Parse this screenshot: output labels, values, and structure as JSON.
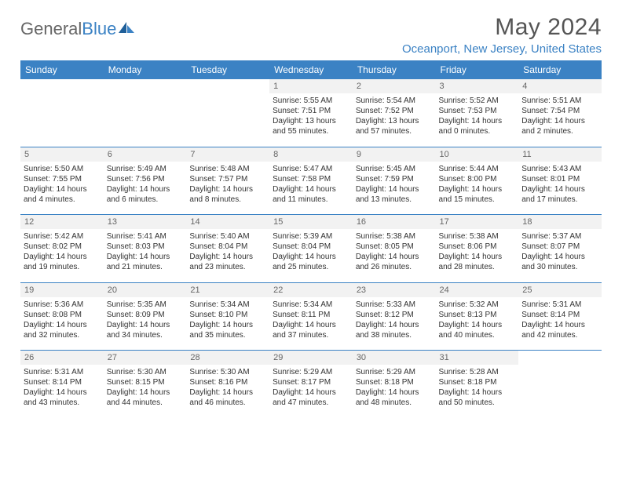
{
  "brand": {
    "part1": "General",
    "part2": "Blue"
  },
  "title": "May 2024",
  "location": "Oceanport, New Jersey, United States",
  "day_headers": [
    "Sunday",
    "Monday",
    "Tuesday",
    "Wednesday",
    "Thursday",
    "Friday",
    "Saturday"
  ],
  "colors": {
    "accent": "#3b82c4",
    "daynum_bg": "#f2f2f2",
    "text": "#333333",
    "header_text": "#555555"
  },
  "weeks": [
    [
      null,
      null,
      null,
      {
        "n": "1",
        "sr": "Sunrise: 5:55 AM",
        "ss": "Sunset: 7:51 PM",
        "d1": "Daylight: 13 hours",
        "d2": "and 55 minutes."
      },
      {
        "n": "2",
        "sr": "Sunrise: 5:54 AM",
        "ss": "Sunset: 7:52 PM",
        "d1": "Daylight: 13 hours",
        "d2": "and 57 minutes."
      },
      {
        "n": "3",
        "sr": "Sunrise: 5:52 AM",
        "ss": "Sunset: 7:53 PM",
        "d1": "Daylight: 14 hours",
        "d2": "and 0 minutes."
      },
      {
        "n": "4",
        "sr": "Sunrise: 5:51 AM",
        "ss": "Sunset: 7:54 PM",
        "d1": "Daylight: 14 hours",
        "d2": "and 2 minutes."
      }
    ],
    [
      {
        "n": "5",
        "sr": "Sunrise: 5:50 AM",
        "ss": "Sunset: 7:55 PM",
        "d1": "Daylight: 14 hours",
        "d2": "and 4 minutes."
      },
      {
        "n": "6",
        "sr": "Sunrise: 5:49 AM",
        "ss": "Sunset: 7:56 PM",
        "d1": "Daylight: 14 hours",
        "d2": "and 6 minutes."
      },
      {
        "n": "7",
        "sr": "Sunrise: 5:48 AM",
        "ss": "Sunset: 7:57 PM",
        "d1": "Daylight: 14 hours",
        "d2": "and 8 minutes."
      },
      {
        "n": "8",
        "sr": "Sunrise: 5:47 AM",
        "ss": "Sunset: 7:58 PM",
        "d1": "Daylight: 14 hours",
        "d2": "and 11 minutes."
      },
      {
        "n": "9",
        "sr": "Sunrise: 5:45 AM",
        "ss": "Sunset: 7:59 PM",
        "d1": "Daylight: 14 hours",
        "d2": "and 13 minutes."
      },
      {
        "n": "10",
        "sr": "Sunrise: 5:44 AM",
        "ss": "Sunset: 8:00 PM",
        "d1": "Daylight: 14 hours",
        "d2": "and 15 minutes."
      },
      {
        "n": "11",
        "sr": "Sunrise: 5:43 AM",
        "ss": "Sunset: 8:01 PM",
        "d1": "Daylight: 14 hours",
        "d2": "and 17 minutes."
      }
    ],
    [
      {
        "n": "12",
        "sr": "Sunrise: 5:42 AM",
        "ss": "Sunset: 8:02 PM",
        "d1": "Daylight: 14 hours",
        "d2": "and 19 minutes."
      },
      {
        "n": "13",
        "sr": "Sunrise: 5:41 AM",
        "ss": "Sunset: 8:03 PM",
        "d1": "Daylight: 14 hours",
        "d2": "and 21 minutes."
      },
      {
        "n": "14",
        "sr": "Sunrise: 5:40 AM",
        "ss": "Sunset: 8:04 PM",
        "d1": "Daylight: 14 hours",
        "d2": "and 23 minutes."
      },
      {
        "n": "15",
        "sr": "Sunrise: 5:39 AM",
        "ss": "Sunset: 8:04 PM",
        "d1": "Daylight: 14 hours",
        "d2": "and 25 minutes."
      },
      {
        "n": "16",
        "sr": "Sunrise: 5:38 AM",
        "ss": "Sunset: 8:05 PM",
        "d1": "Daylight: 14 hours",
        "d2": "and 26 minutes."
      },
      {
        "n": "17",
        "sr": "Sunrise: 5:38 AM",
        "ss": "Sunset: 8:06 PM",
        "d1": "Daylight: 14 hours",
        "d2": "and 28 minutes."
      },
      {
        "n": "18",
        "sr": "Sunrise: 5:37 AM",
        "ss": "Sunset: 8:07 PM",
        "d1": "Daylight: 14 hours",
        "d2": "and 30 minutes."
      }
    ],
    [
      {
        "n": "19",
        "sr": "Sunrise: 5:36 AM",
        "ss": "Sunset: 8:08 PM",
        "d1": "Daylight: 14 hours",
        "d2": "and 32 minutes."
      },
      {
        "n": "20",
        "sr": "Sunrise: 5:35 AM",
        "ss": "Sunset: 8:09 PM",
        "d1": "Daylight: 14 hours",
        "d2": "and 34 minutes."
      },
      {
        "n": "21",
        "sr": "Sunrise: 5:34 AM",
        "ss": "Sunset: 8:10 PM",
        "d1": "Daylight: 14 hours",
        "d2": "and 35 minutes."
      },
      {
        "n": "22",
        "sr": "Sunrise: 5:34 AM",
        "ss": "Sunset: 8:11 PM",
        "d1": "Daylight: 14 hours",
        "d2": "and 37 minutes."
      },
      {
        "n": "23",
        "sr": "Sunrise: 5:33 AM",
        "ss": "Sunset: 8:12 PM",
        "d1": "Daylight: 14 hours",
        "d2": "and 38 minutes."
      },
      {
        "n": "24",
        "sr": "Sunrise: 5:32 AM",
        "ss": "Sunset: 8:13 PM",
        "d1": "Daylight: 14 hours",
        "d2": "and 40 minutes."
      },
      {
        "n": "25",
        "sr": "Sunrise: 5:31 AM",
        "ss": "Sunset: 8:14 PM",
        "d1": "Daylight: 14 hours",
        "d2": "and 42 minutes."
      }
    ],
    [
      {
        "n": "26",
        "sr": "Sunrise: 5:31 AM",
        "ss": "Sunset: 8:14 PM",
        "d1": "Daylight: 14 hours",
        "d2": "and 43 minutes."
      },
      {
        "n": "27",
        "sr": "Sunrise: 5:30 AM",
        "ss": "Sunset: 8:15 PM",
        "d1": "Daylight: 14 hours",
        "d2": "and 44 minutes."
      },
      {
        "n": "28",
        "sr": "Sunrise: 5:30 AM",
        "ss": "Sunset: 8:16 PM",
        "d1": "Daylight: 14 hours",
        "d2": "and 46 minutes."
      },
      {
        "n": "29",
        "sr": "Sunrise: 5:29 AM",
        "ss": "Sunset: 8:17 PM",
        "d1": "Daylight: 14 hours",
        "d2": "and 47 minutes."
      },
      {
        "n": "30",
        "sr": "Sunrise: 5:29 AM",
        "ss": "Sunset: 8:18 PM",
        "d1": "Daylight: 14 hours",
        "d2": "and 48 minutes."
      },
      {
        "n": "31",
        "sr": "Sunrise: 5:28 AM",
        "ss": "Sunset: 8:18 PM",
        "d1": "Daylight: 14 hours",
        "d2": "and 50 minutes."
      },
      null
    ]
  ]
}
